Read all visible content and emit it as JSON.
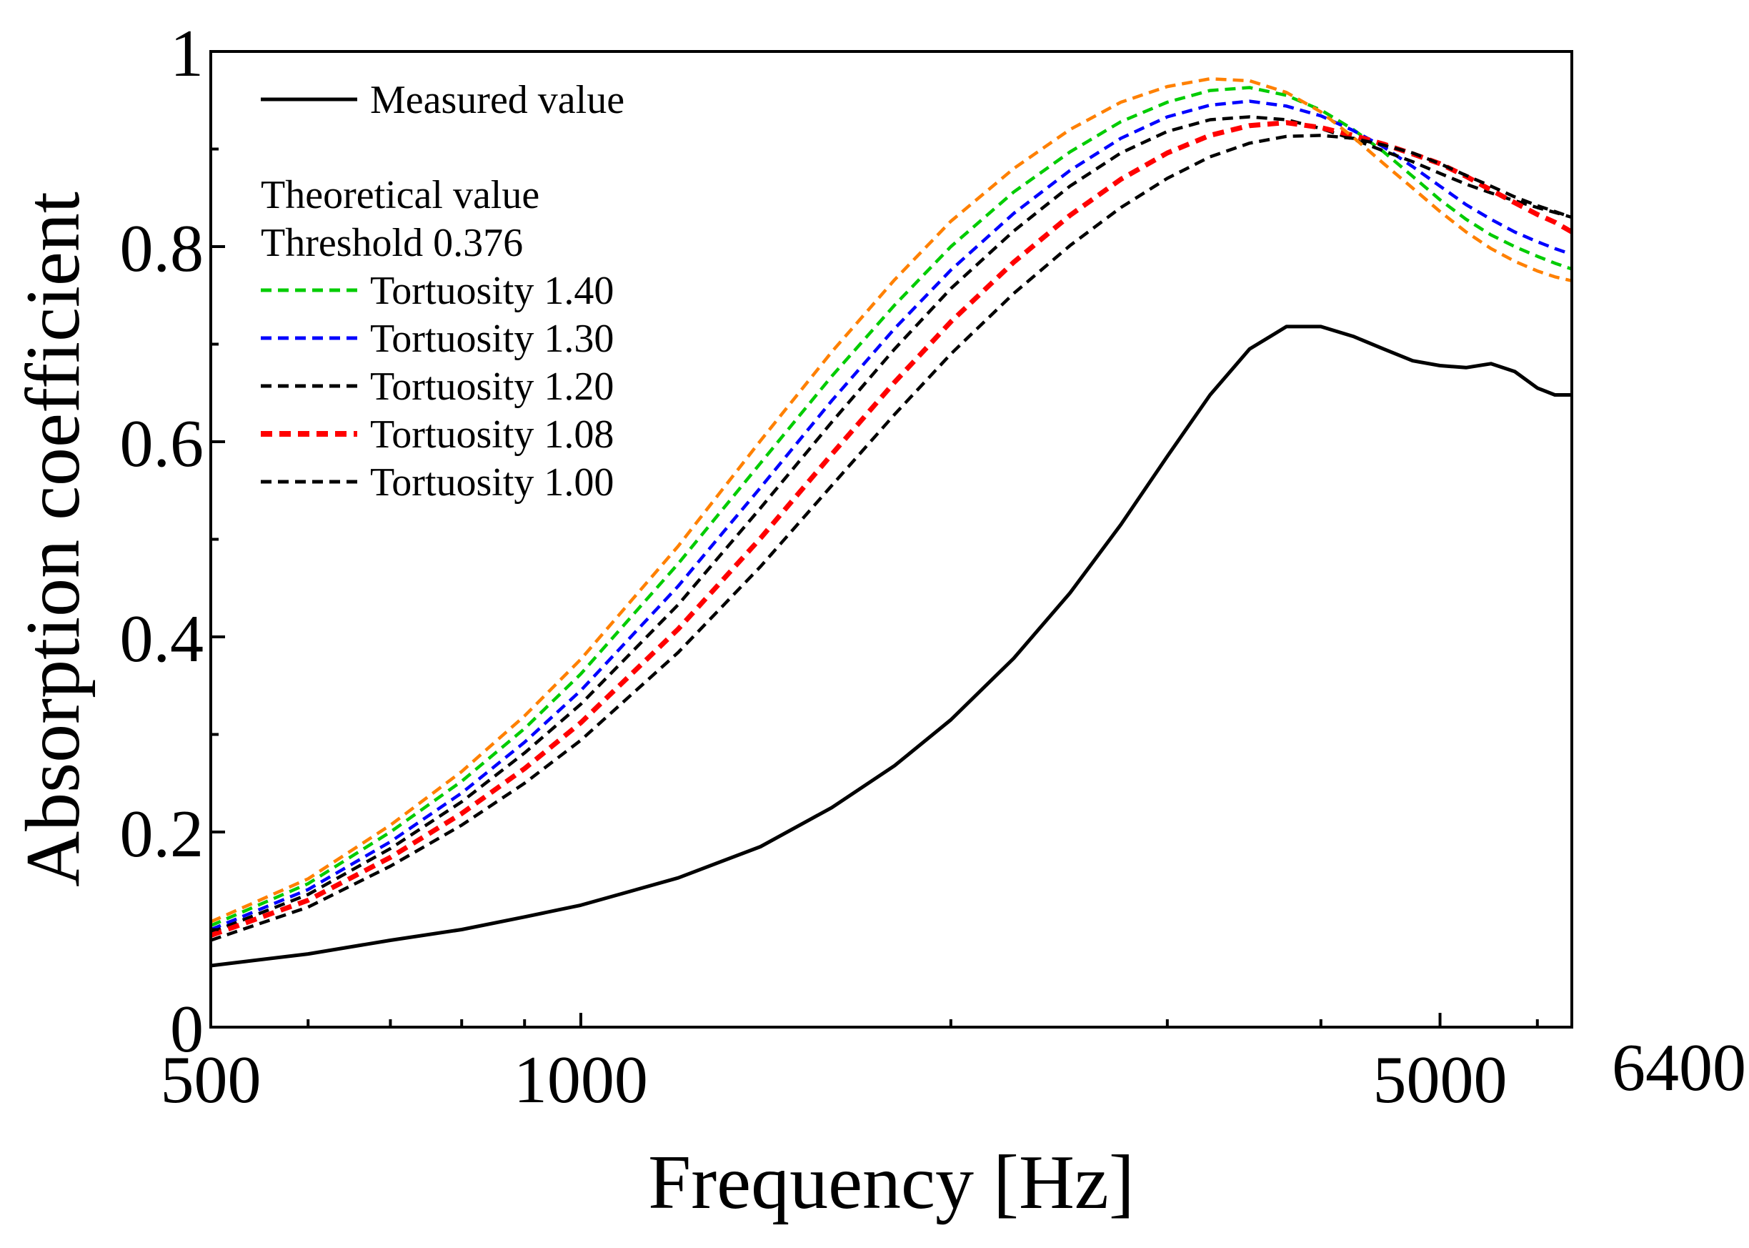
{
  "chart_data": {
    "type": "line",
    "title": "",
    "xlabel": "Frequency [Hz]",
    "ylabel": "Absorption coefficient",
    "xscale": "log",
    "xlim": [
      500,
      6400
    ],
    "ylim": [
      0,
      1
    ],
    "x_ticks": [
      500,
      1000,
      5000,
      6400
    ],
    "x_tick_labels": [
      "500",
      "1000",
      "5000",
      "6400"
    ],
    "x_minor_ticks": [
      600,
      700,
      800,
      900,
      2000,
      3000,
      4000,
      6000
    ],
    "y_ticks": [
      0,
      0.2,
      0.4,
      0.6,
      0.8,
      1
    ],
    "y_tick_labels": [
      "0",
      "0.2",
      "0.4",
      "0.6",
      "0.8",
      "1"
    ],
    "y_minor_ticks": [
      0.1,
      0.3,
      0.5,
      0.7,
      0.9
    ],
    "grid": false,
    "legend": {
      "placement": "top-left",
      "heading": "Theoretical value",
      "subheading": "Threshold 0.376"
    },
    "series": [
      {
        "name": "Measured value",
        "color": "#000000",
        "dashed": false,
        "bold": false,
        "x": [
          500,
          600,
          700,
          800,
          900,
          1000,
          1200,
          1400,
          1600,
          1800,
          2000,
          2250,
          2500,
          2750,
          3000,
          3250,
          3500,
          3750,
          4000,
          4250,
          4500,
          4750,
          5000,
          5250,
          5500,
          5750,
          6000,
          6200,
          6400
        ],
        "y": [
          0.063,
          0.075,
          0.089,
          0.1,
          0.113,
          0.125,
          0.153,
          0.185,
          0.225,
          0.268,
          0.315,
          0.378,
          0.445,
          0.515,
          0.585,
          0.648,
          0.695,
          0.718,
          0.718,
          0.708,
          0.695,
          0.683,
          0.678,
          0.676,
          0.68,
          0.672,
          0.655,
          0.648,
          0.648
        ]
      },
      {
        "name": "Tortuosity 1.40",
        "color": "#00cc00",
        "dashed": true,
        "bold": false,
        "x": [
          500,
          600,
          700,
          800,
          900,
          1000,
          1200,
          1400,
          1600,
          1800,
          2000,
          2250,
          2500,
          2750,
          3000,
          3250,
          3500,
          3750,
          4000,
          4250,
          4500,
          4750,
          5000,
          5250,
          5500,
          5750,
          6000,
          6200,
          6400
        ],
        "y": [
          0.104,
          0.147,
          0.2,
          0.252,
          0.306,
          0.362,
          0.475,
          0.578,
          0.667,
          0.74,
          0.8,
          0.856,
          0.897,
          0.928,
          0.948,
          0.96,
          0.963,
          0.955,
          0.94,
          0.92,
          0.897,
          0.872,
          0.848,
          0.828,
          0.812,
          0.8,
          0.79,
          0.783,
          0.777
        ]
      },
      {
        "name": "Tortuosity 1.30",
        "color": "#0000ff",
        "dashed": true,
        "bold": false,
        "x": [
          500,
          600,
          700,
          800,
          900,
          1000,
          1200,
          1400,
          1600,
          1800,
          2000,
          2250,
          2500,
          2750,
          3000,
          3250,
          3500,
          3750,
          4000,
          4250,
          4500,
          4750,
          5000,
          5250,
          5500,
          5750,
          6000,
          6200,
          6400
        ],
        "y": [
          0.1,
          0.141,
          0.19,
          0.24,
          0.292,
          0.345,
          0.452,
          0.553,
          0.642,
          0.716,
          0.776,
          0.834,
          0.878,
          0.911,
          0.933,
          0.945,
          0.949,
          0.944,
          0.934,
          0.919,
          0.902,
          0.882,
          0.862,
          0.843,
          0.828,
          0.815,
          0.805,
          0.798,
          0.792
        ]
      },
      {
        "name": "Tortuosity 1.20",
        "color": "#000000",
        "dashed": true,
        "bold": false,
        "x": [
          500,
          600,
          700,
          800,
          900,
          1000,
          1200,
          1400,
          1600,
          1800,
          2000,
          2250,
          2500,
          2750,
          3000,
          3250,
          3500,
          3750,
          4000,
          4250,
          4500,
          4750,
          5000,
          5250,
          5500,
          5750,
          6000,
          6200,
          6400
        ],
        "y": [
          0.097,
          0.136,
          0.183,
          0.231,
          0.281,
          0.331,
          0.433,
          0.532,
          0.62,
          0.695,
          0.757,
          0.816,
          0.862,
          0.896,
          0.918,
          0.93,
          0.933,
          0.93,
          0.921,
          0.91,
          0.898,
          0.887,
          0.875,
          0.864,
          0.855,
          0.847,
          0.84,
          0.835,
          0.83
        ]
      },
      {
        "name": "Tortuosity 1.08",
        "color": "#ff0000",
        "dashed": true,
        "bold": true,
        "x": [
          500,
          600,
          700,
          800,
          900,
          1000,
          1200,
          1400,
          1600,
          1800,
          2000,
          2250,
          2500,
          2750,
          3000,
          3250,
          3500,
          3750,
          4000,
          4250,
          4500,
          4750,
          5000,
          5250,
          5500,
          5750,
          6000,
          6200,
          6400
        ],
        "y": [
          0.094,
          0.13,
          0.174,
          0.219,
          0.265,
          0.312,
          0.408,
          0.501,
          0.587,
          0.661,
          0.723,
          0.784,
          0.832,
          0.869,
          0.896,
          0.914,
          0.924,
          0.927,
          0.922,
          0.914,
          0.905,
          0.895,
          0.885,
          0.872,
          0.858,
          0.845,
          0.833,
          0.825,
          0.815
        ]
      },
      {
        "name": "Tortuosity 1.00",
        "color": "#000000",
        "dashed": true,
        "bold": false,
        "x": [
          500,
          600,
          700,
          800,
          900,
          1000,
          1200,
          1400,
          1600,
          1800,
          2000,
          2250,
          2500,
          2750,
          3000,
          3250,
          3500,
          3750,
          4000,
          4250,
          4500,
          4750,
          5000,
          5250,
          5500,
          5750,
          6000,
          6200,
          6400
        ],
        "y": [
          0.089,
          0.123,
          0.165,
          0.207,
          0.25,
          0.294,
          0.384,
          0.472,
          0.555,
          0.628,
          0.69,
          0.752,
          0.801,
          0.84,
          0.87,
          0.892,
          0.906,
          0.913,
          0.914,
          0.911,
          0.904,
          0.896,
          0.885,
          0.873,
          0.862,
          0.851,
          0.842,
          0.836,
          0.83
        ]
      },
      {
        "name": "",
        "color": "#ff8000",
        "dashed": true,
        "bold": false,
        "x": [
          500,
          600,
          700,
          800,
          900,
          1000,
          1200,
          1400,
          1600,
          1800,
          2000,
          2250,
          2500,
          2750,
          3000,
          3250,
          3500,
          3750,
          4000,
          4250,
          4500,
          4750,
          5000,
          5250,
          5500,
          5750,
          6000,
          6200,
          6400
        ],
        "y": [
          0.108,
          0.152,
          0.207,
          0.262,
          0.319,
          0.377,
          0.493,
          0.601,
          0.692,
          0.766,
          0.826,
          0.88,
          0.92,
          0.948,
          0.964,
          0.972,
          0.97,
          0.958,
          0.938,
          0.912,
          0.885,
          0.86,
          0.836,
          0.815,
          0.798,
          0.785,
          0.775,
          0.769,
          0.765
        ]
      }
    ]
  }
}
